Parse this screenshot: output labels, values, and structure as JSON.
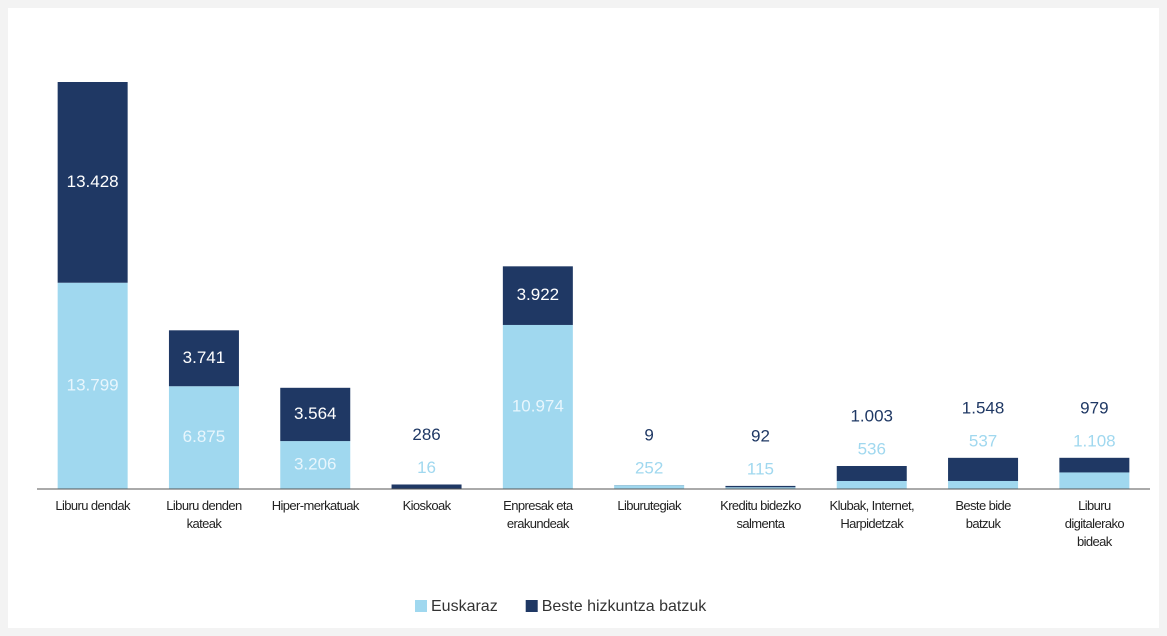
{
  "chart_data": {
    "type": "stacked_bar",
    "categories": [
      "Liburu dendak",
      "Liburu denden kateak",
      "Hiper-merkatuak",
      "Kioskoak",
      "Enpresak eta erakundeak",
      "Liburutegiak",
      "Kreditu bidezko salmenta",
      "Klubak, Internet, Harpidetzak",
      "Beste bide batzuk",
      "Liburu digitalerako bideak"
    ],
    "series": [
      {
        "name": "Euskaraz",
        "color": "#a0d8ef",
        "values": [
          13799,
          6875,
          3206,
          16,
          10974,
          252,
          115,
          536,
          537,
          1108
        ],
        "value_labels": [
          "13.799",
          "6.875",
          "3.206",
          "16",
          "10.974",
          "252",
          "115",
          "536",
          "537",
          "1.108"
        ]
      },
      {
        "name": "Beste hizkuntza batzuk",
        "color": "#1f3864",
        "values": [
          13428,
          3741,
          3564,
          286,
          3922,
          9,
          92,
          1003,
          1548,
          979
        ],
        "value_labels": [
          "13.428",
          "3.741",
          "3.564",
          "286",
          "3.922",
          "9",
          "92",
          "1.003",
          "1.548",
          "979"
        ]
      }
    ],
    "legend": "bottom"
  }
}
